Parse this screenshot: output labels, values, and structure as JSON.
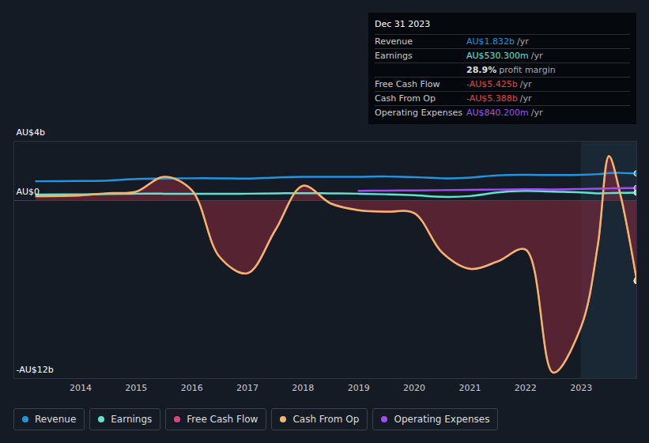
{
  "chart_data": {
    "type": "line",
    "x": [
      2013.2,
      2014,
      2014.5,
      2015,
      2015.5,
      2016,
      2016.5,
      2017,
      2017.5,
      2018,
      2018.5,
      2019,
      2019.5,
      2020,
      2020.5,
      2021,
      2021.5,
      2022,
      2022.5,
      2023,
      2023.3,
      2023.5,
      2023.7,
      2024
    ],
    "xlim": [
      2012.8,
      2024.0
    ],
    "xticks": [
      2014,
      2015,
      2016,
      2017,
      2018,
      2019,
      2020,
      2021,
      2022,
      2023
    ],
    "ylim": [
      -12,
      4
    ],
    "yticks": [
      {
        "value": 4,
        "label": "AU$4b"
      },
      {
        "value": 0,
        "label": "AU$0"
      },
      {
        "value": -12,
        "label": "-AU$12b"
      }
    ],
    "grid": true,
    "legend": "bottom",
    "series": [
      {
        "name": "Revenue",
        "color": "#2394df",
        "values": [
          1.3,
          1.32,
          1.35,
          1.45,
          1.48,
          1.5,
          1.5,
          1.48,
          1.55,
          1.6,
          1.6,
          1.6,
          1.62,
          1.58,
          1.5,
          1.55,
          1.7,
          1.73,
          1.72,
          1.73,
          1.78,
          1.85,
          1.86,
          1.832
        ]
      },
      {
        "name": "Earnings",
        "color": "#5fe3d2",
        "values": [
          0.4,
          0.42,
          0.44,
          0.46,
          0.46,
          0.45,
          0.45,
          0.46,
          0.48,
          0.5,
          0.48,
          0.46,
          0.42,
          0.36,
          0.25,
          0.3,
          0.55,
          0.65,
          0.6,
          0.55,
          0.48,
          0.5,
          0.52,
          0.5303
        ]
      },
      {
        "name": "Free Cash Flow",
        "color": "#d9457f",
        "type": "area",
        "values": [
          0.28,
          0.33,
          0.48,
          0.58,
          1.58,
          0.68,
          -3.82,
          -4.92,
          -2.02,
          0.98,
          -0.22,
          -0.67,
          -0.77,
          -0.87,
          -3.52,
          -4.62,
          -4.12,
          -3.32,
          -11.62,
          -8.52,
          -3.03,
          2.97,
          0.47,
          -5.425
        ]
      },
      {
        "name": "Cash From Op",
        "color": "#f2b46c",
        "values": [
          0.3,
          0.35,
          0.5,
          0.6,
          1.6,
          0.7,
          -3.8,
          -4.9,
          -2.0,
          1.0,
          -0.2,
          -0.65,
          -0.75,
          -0.85,
          -3.5,
          -4.6,
          -4.1,
          -3.3,
          -11.6,
          -8.5,
          -3.0,
          3.0,
          0.5,
          -5.388
        ]
      },
      {
        "name": "Operating Expenses",
        "color": "#a04ef0",
        "values": [
          null,
          null,
          null,
          null,
          null,
          null,
          null,
          null,
          null,
          null,
          null,
          0.65,
          0.67,
          0.68,
          0.7,
          0.72,
          0.74,
          0.76,
          0.75,
          0.78,
          0.8,
          0.82,
          0.83,
          0.8402
        ]
      }
    ],
    "tooltip": {
      "date": "Dec 31 2023",
      "rows": [
        {
          "label": "Revenue",
          "value": "AU$1.832b",
          "unit": "/yr",
          "color": "#2394df"
        },
        {
          "label": "Earnings",
          "value": "AU$530.300m",
          "unit": "/yr",
          "color": "#5fe3d2"
        },
        {
          "label": "",
          "value": "28.9%",
          "unit": "profit margin",
          "color": "#dddddd"
        },
        {
          "label": "Free Cash Flow",
          "value": "-AU$5.425b",
          "unit": "/yr",
          "color": "#e8413f"
        },
        {
          "label": "Cash From Op",
          "value": "-AU$5.388b",
          "unit": "/yr",
          "color": "#e8413f"
        },
        {
          "label": "Operating Expenses",
          "value": "AU$840.200m",
          "unit": "/yr",
          "color": "#a04ef0"
        }
      ]
    }
  }
}
